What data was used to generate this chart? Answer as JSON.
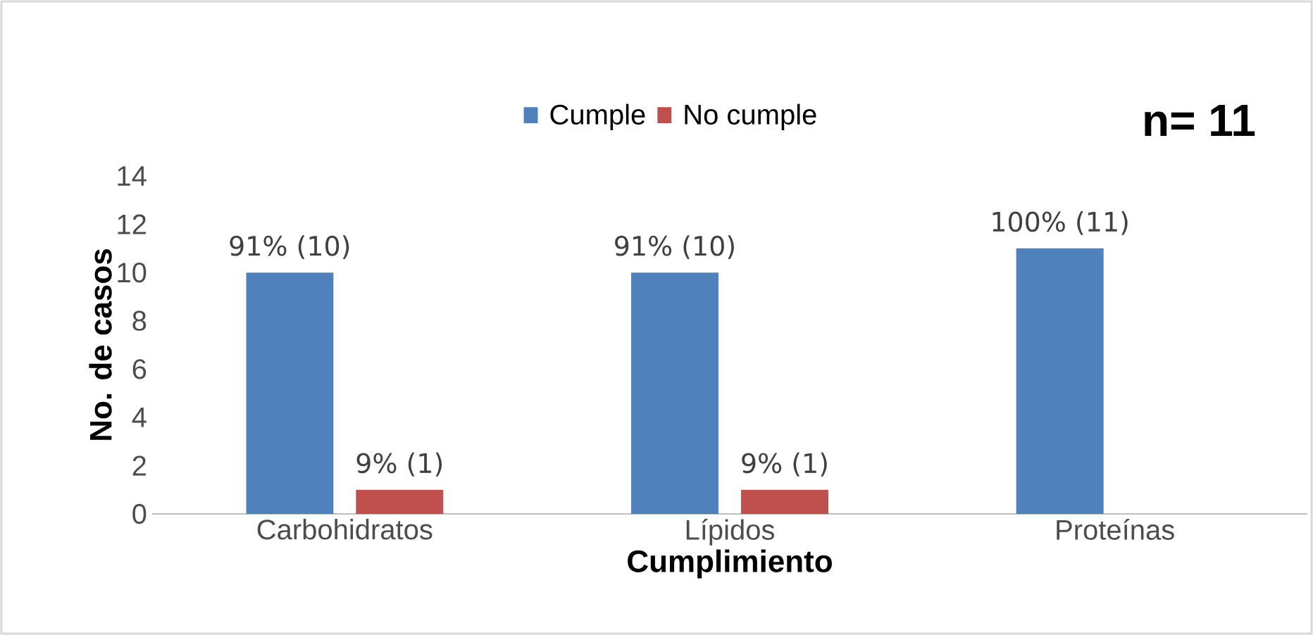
{
  "chart_data": {
    "type": "bar",
    "xlabel": "Cumplimiento",
    "ylabel": "No. de casos",
    "categories": [
      "Carbohidratos",
      "Lípidos",
      "Proteínas"
    ],
    "series": [
      {
        "name": "Cumple",
        "color": "#4f81bd",
        "values": [
          10,
          10,
          11
        ],
        "value_labels": [
          "91% (10)",
          "91% (10)",
          "100% (11)"
        ]
      },
      {
        "name": "No cumple",
        "color": "#c0504d",
        "values": [
          1,
          1,
          0
        ],
        "value_labels": [
          "9% (1)",
          "9% (1)",
          null
        ]
      }
    ],
    "ylim": [
      0,
      14
    ],
    "yticks": [
      0,
      2,
      4,
      6,
      8,
      10,
      12,
      14
    ],
    "grid": false,
    "legend": "top",
    "annotations": [
      "n= 11"
    ]
  }
}
